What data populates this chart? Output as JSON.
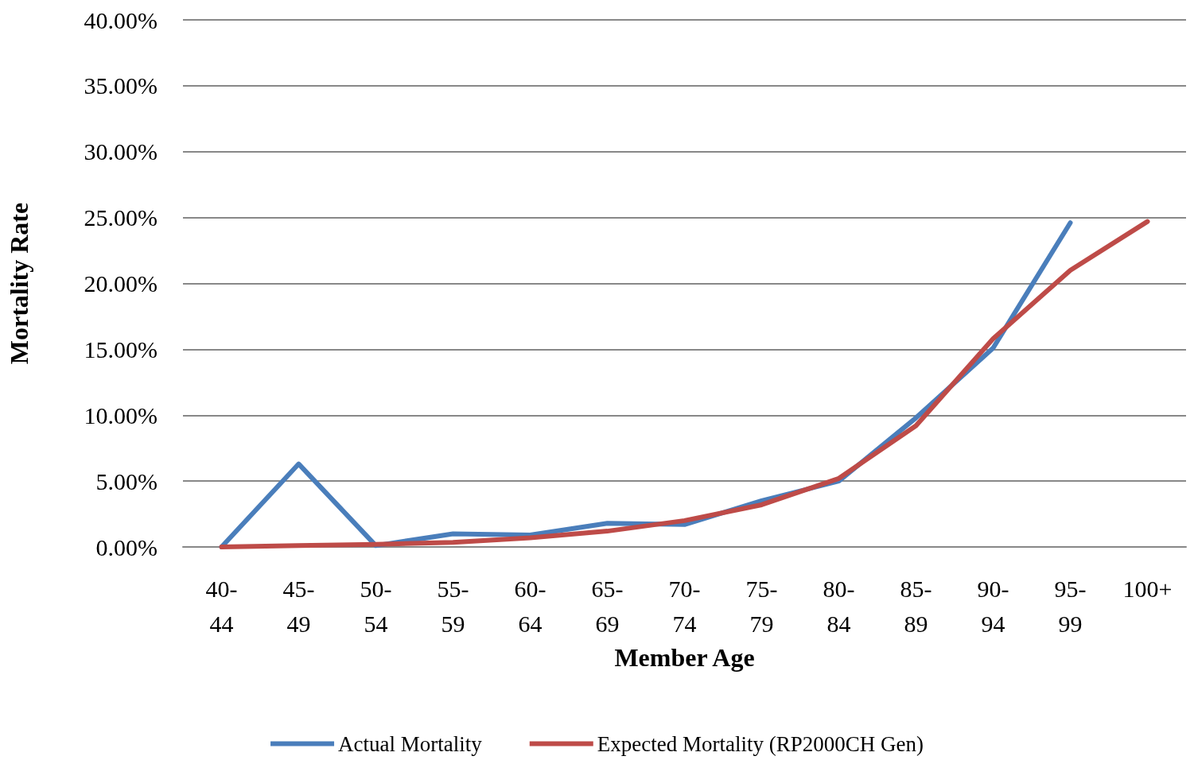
{
  "chart_data": {
    "type": "line",
    "xlabel": "Member Age",
    "ylabel": "Mortality Rate",
    "categories": [
      "40-44",
      "45-49",
      "50-54",
      "55-59",
      "60-64",
      "65-69",
      "70-74",
      "75-79",
      "80-84",
      "85-89",
      "90-94",
      "95-99",
      "100+"
    ],
    "series": [
      {
        "name": "Actual Mortality",
        "color": "#4a7ebb",
        "values": [
          0,
          6.3,
          0.1,
          1.0,
          0.9,
          1.8,
          1.7,
          3.5,
          5.0,
          9.8,
          15.1,
          24.6,
          null
        ]
      },
      {
        "name": "Expected Mortality (RP2000CH Gen)",
        "color": "#be4b48",
        "values": [
          0,
          0.1,
          0.2,
          0.35,
          0.7,
          1.2,
          2.0,
          3.2,
          5.2,
          9.2,
          15.8,
          21.0,
          24.7
        ]
      }
    ],
    "ylim": [
      0,
      40
    ],
    "yticks": [
      {
        "value": 0,
        "label": "0.00%"
      },
      {
        "value": 5,
        "label": "5.00%"
      },
      {
        "value": 10,
        "label": "10.00%"
      },
      {
        "value": 15,
        "label": "15.00%"
      },
      {
        "value": 20,
        "label": "20.00%"
      },
      {
        "value": 25,
        "label": "25.00%"
      },
      {
        "value": 30,
        "label": "30.00%"
      },
      {
        "value": 35,
        "label": "35.00%"
      },
      {
        "value": 40,
        "label": "40.00%"
      }
    ],
    "grid": "y",
    "legend": "bottom",
    "marker": "none",
    "line_style": "solid"
  }
}
